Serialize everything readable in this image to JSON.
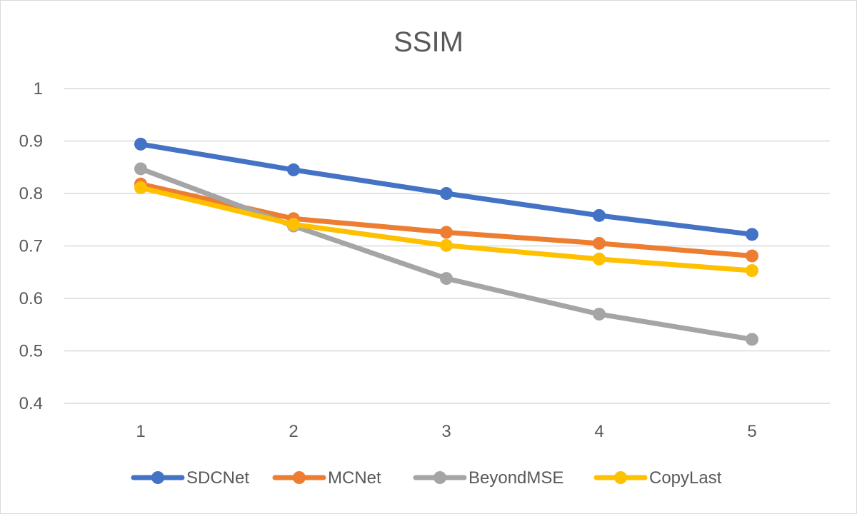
{
  "chart_data": {
    "type": "line",
    "title": "SSIM",
    "xlabel": "",
    "ylabel": "",
    "x": [
      "1",
      "2",
      "3",
      "4",
      "5"
    ],
    "ylim": [
      0.4,
      1
    ],
    "yticks": [
      "0.4",
      "0.5",
      "0.6",
      "0.7",
      "0.8",
      "0.9",
      "1"
    ],
    "grid": true,
    "legend_position": "bottom",
    "series": [
      {
        "name": "SDCNet",
        "color": "#4472C4",
        "values": [
          0.894,
          0.845,
          0.8,
          0.758,
          0.722
        ]
      },
      {
        "name": "MCNet",
        "color": "#ED7D31",
        "values": [
          0.818,
          0.752,
          0.726,
          0.705,
          0.681
        ]
      },
      {
        "name": "BeyondMSE",
        "color": "#A5A5A5",
        "values": [
          0.847,
          0.738,
          0.638,
          0.57,
          0.522
        ]
      },
      {
        "name": "CopyLast",
        "color": "#FFC000",
        "values": [
          0.811,
          0.741,
          0.701,
          0.675,
          0.653
        ]
      }
    ]
  }
}
